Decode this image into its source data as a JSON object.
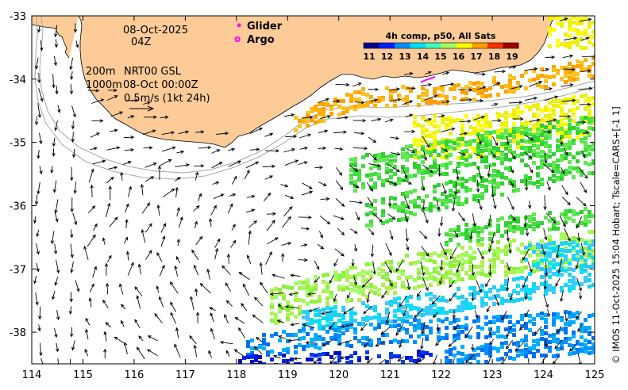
{
  "map": {
    "lon_ticks": [
      "114",
      "115",
      "116",
      "117",
      "118",
      "119",
      "120",
      "121",
      "122",
      "123",
      "124",
      "125"
    ],
    "lat_ticks": [
      "-33",
      "-34",
      "-35",
      "-36",
      "-37",
      "-38"
    ],
    "lon_range": [
      114,
      125
    ],
    "lat_range": [
      -38.55,
      -32.98
    ]
  },
  "annotations": {
    "date": "08-Oct-2025",
    "time": "04Z",
    "depth_200": "200m",
    "depth_1000": "1000m",
    "product": "NRT00 GSL",
    "product_time": "08-Oct 00:00Z",
    "scale_arrow_label": "0.5m/s (1kt 24h)"
  },
  "markers": {
    "glider_label": "Glider",
    "glider_symbol": "•",
    "glider_color": "#ff00ff",
    "argo_label": "Argo",
    "argo_symbol": "o",
    "argo_color": "#ff00ff"
  },
  "colorbar": {
    "title": "4h comp, p50, All Sats",
    "ticks": [
      "11",
      "12",
      "13",
      "14",
      "15",
      "16",
      "17",
      "18",
      "19"
    ],
    "colors": [
      "#00008f",
      "#0020ff",
      "#0090ff",
      "#00e0ff",
      "#40ffbf",
      "#a0ff60",
      "#ffff00",
      "#ffa000",
      "#ff3000",
      "#a00000"
    ]
  },
  "colors": {
    "land": "#fccb97",
    "isobath": "#a6a6a6",
    "arrow": "#000000",
    "glider_track": "#ff00ff"
  },
  "credit": "© IMOS 11-Oct-2025 15:04 Hobart; Tscale=CARS+[-1 1]"
}
